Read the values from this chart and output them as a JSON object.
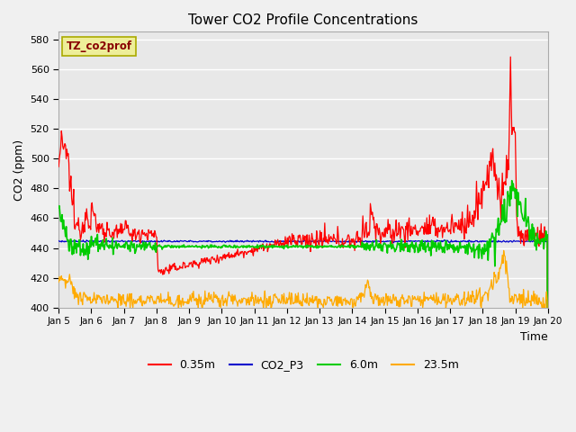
{
  "title": "Tower CO2 Profile Concentrations",
  "xlabel": "Time",
  "ylabel": "CO2 (ppm)",
  "ylim": [
    400,
    585
  ],
  "yticks": [
    400,
    420,
    440,
    460,
    480,
    500,
    520,
    540,
    560,
    580
  ],
  "xtick_labels": [
    "Jan 5",
    "Jan 6",
    "Jan 7",
    "Jan 8",
    "Jan 9",
    "Jan 10",
    "Jan 11",
    "Jan 12",
    "Jan 13",
    "Jan 14",
    "Jan 15",
    "Jan 16",
    "Jan 17",
    "Jan 18",
    "Jan 19",
    "Jan 20"
  ],
  "legend_labels": [
    "0.35m",
    "CO2_P3",
    "6.0m",
    "23.5m"
  ],
  "legend_colors": [
    "#ff0000",
    "#0000cc",
    "#00cc00",
    "#ffaa00"
  ],
  "annotation_text": "TZ_co2prof",
  "annotation_bg": "#eeee99",
  "annotation_edge": "#aaaa00",
  "annotation_text_color": "#880000",
  "plot_bg": "#e8e8e8",
  "fig_bg": "#f0f0f0",
  "grid_color": "#ffffff",
  "line_colors": {
    "c035m": "#ff0000",
    "co2p3": "#0000cc",
    "c6m": "#00cc00",
    "c235m": "#ffaa00"
  },
  "line_widths": {
    "c035m": 0.9,
    "co2p3": 0.9,
    "c6m": 1.2,
    "c235m": 0.9
  }
}
